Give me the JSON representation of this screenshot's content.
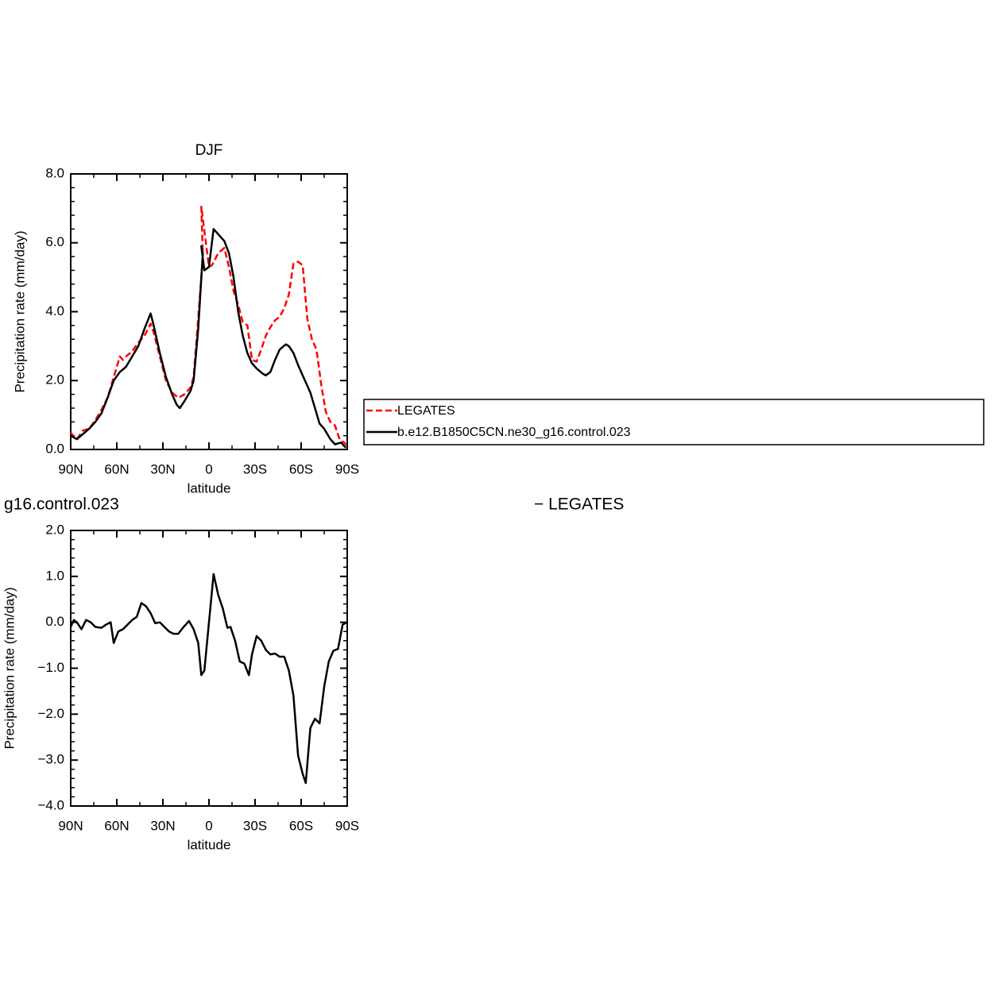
{
  "chart_data": [
    {
      "type": "line",
      "title": "DJF",
      "xlabel": "latitude",
      "ylabel": "Precipitation rate (mm/day)",
      "xlim": [
        90,
        -90
      ],
      "ylim": [
        0,
        8
      ],
      "xticks": [
        {
          "value": 90,
          "label": "90N"
        },
        {
          "value": 60,
          "label": "60N"
        },
        {
          "value": 30,
          "label": "30N"
        },
        0,
        {
          "value": -30,
          "label": "30S"
        },
        {
          "value": -60,
          "label": "60S"
        },
        {
          "value": -90,
          "label": "90S"
        }
      ],
      "yticks": [
        {
          "value": 0,
          "label": "0.0"
        },
        {
          "value": 2,
          "label": "2.0"
        },
        {
          "value": 4,
          "label": "4.0"
        },
        {
          "value": 6,
          "label": "6.0"
        },
        {
          "value": 8,
          "label": "8.0"
        }
      ],
      "xminor": [
        75,
        45,
        15,
        -15,
        -45,
        -75
      ],
      "yminor": [
        0.4,
        0.8,
        1.2,
        1.6,
        2.4,
        2.8,
        3.2,
        3.6,
        4.4,
        4.8,
        5.2,
        5.6,
        6.4,
        6.8,
        7.2,
        7.6
      ],
      "legend": "right",
      "series": [
        {
          "name": "LEGATES",
          "color": "#ff0000",
          "dash": true,
          "x": [
            90,
            88,
            86,
            82,
            78,
            74,
            70,
            66,
            62,
            58,
            56,
            54,
            50,
            46,
            42,
            38,
            36,
            32,
            28,
            24,
            20,
            16,
            12,
            10,
            7,
            4,
            5,
            2,
            0,
            -2,
            -6,
            -10,
            -13,
            -16,
            -19,
            -22,
            -25,
            -28,
            -31,
            -34,
            -37,
            -40,
            -43,
            -46,
            -49,
            -52,
            -55,
            -58,
            -61,
            -64,
            -67,
            -70,
            -73,
            -76,
            -79,
            -82,
            -85,
            -88,
            -90
          ],
          "values": [
            0.5,
            0.35,
            0.3,
            0.55,
            0.6,
            0.85,
            1.15,
            1.5,
            2.1,
            2.7,
            2.6,
            2.7,
            2.85,
            3.1,
            3.3,
            3.65,
            3.4,
            2.7,
            2.0,
            1.65,
            1.5,
            1.6,
            1.8,
            2.1,
            3.8,
            5.6,
            7.05,
            6.0,
            5.3,
            5.35,
            5.7,
            5.85,
            5.3,
            4.6,
            4.2,
            3.7,
            3.6,
            2.6,
            2.55,
            2.9,
            3.3,
            3.55,
            3.75,
            3.85,
            4.1,
            4.5,
            5.4,
            5.45,
            5.35,
            3.8,
            3.2,
            2.9,
            1.9,
            1.1,
            0.8,
            0.7,
            0.3,
            0.2,
            0.1
          ]
        },
        {
          "name": "b.e12.B1850C5CN.ne30_g16.control.023",
          "color": "#000000",
          "dash": false,
          "x": [
            90,
            86,
            82,
            78,
            74,
            70,
            66,
            62,
            58,
            54,
            50,
            46,
            42,
            38,
            36,
            32,
            28,
            24,
            21,
            19,
            16,
            12,
            10,
            7,
            4,
            5,
            3,
            0,
            -3,
            -7,
            -10,
            -13,
            -16,
            -19,
            -22,
            -25,
            -28,
            -31,
            -35,
            -37,
            -40,
            -43,
            -46,
            -50,
            -52,
            -55,
            -58,
            -62,
            -66,
            -69,
            -72,
            -75,
            -79,
            -82,
            -86,
            -89
          ],
          "values": [
            0.4,
            0.3,
            0.45,
            0.6,
            0.8,
            1.05,
            1.5,
            2.0,
            2.25,
            2.4,
            2.7,
            3.0,
            3.5,
            3.95,
            3.6,
            2.8,
            2.1,
            1.6,
            1.3,
            1.2,
            1.4,
            1.7,
            2.0,
            3.5,
            5.7,
            5.9,
            5.2,
            5.3,
            6.4,
            6.2,
            6.05,
            5.7,
            5.0,
            4.0,
            3.3,
            2.8,
            2.5,
            2.35,
            2.2,
            2.15,
            2.25,
            2.6,
            2.9,
            3.05,
            3.0,
            2.8,
            2.45,
            2.05,
            1.65,
            1.2,
            0.75,
            0.6,
            0.3,
            0.15,
            0.2,
            0.05
          ]
        }
      ]
    },
    {
      "type": "line",
      "title_parts": [
        "g16.control.023",
        "− LEGATES"
      ],
      "xlabel": "latitude",
      "ylabel": "Precipitation rate (mm/day)",
      "xlim": [
        90,
        -90
      ],
      "ylim": [
        -4,
        2
      ],
      "xticks": [
        {
          "value": 90,
          "label": "90N"
        },
        {
          "value": 60,
          "label": "60N"
        },
        {
          "value": 30,
          "label": "30N"
        },
        0,
        {
          "value": -30,
          "label": "30S"
        },
        {
          "value": -60,
          "label": "60S"
        },
        {
          "value": -90,
          "label": "90S"
        }
      ],
      "yticks": [
        {
          "value": -4,
          "label": "−4.0"
        },
        {
          "value": -3,
          "label": "−3.0"
        },
        {
          "value": -2,
          "label": "−2.0"
        },
        {
          "value": -1,
          "label": "−1.0"
        },
        {
          "value": 0,
          "label": "0.0"
        },
        {
          "value": 1,
          "label": "1.0"
        },
        {
          "value": 2,
          "label": "2.0"
        }
      ],
      "xminor": [
        75,
        45,
        15,
        -15,
        -45,
        -75
      ],
      "yminor": [
        -3.8,
        -3.6,
        -3.4,
        -3.2,
        -2.8,
        -2.6,
        -2.4,
        -2.2,
        -1.8,
        -1.6,
        -1.4,
        -1.2,
        -0.8,
        -0.6,
        -0.4,
        -0.2,
        0.2,
        0.4,
        0.6,
        0.8,
        1.2,
        1.4,
        1.6,
        1.8
      ],
      "series": [
        {
          "color": "#000000",
          "dash": false,
          "x": [
            90,
            88,
            86,
            83,
            80,
            77,
            74,
            70,
            67,
            64,
            62,
            59,
            56,
            53,
            50,
            47,
            44,
            41,
            38,
            35,
            32,
            29,
            26,
            23,
            20,
            17,
            13,
            10,
            7,
            5,
            3,
            0,
            -3,
            -6,
            -9,
            -12,
            -14,
            -17,
            -20,
            -23,
            -26,
            -28,
            -31,
            -34,
            -37,
            -40,
            -43,
            -46,
            -49,
            -52,
            -55,
            -58,
            -61,
            -63,
            -66,
            -69,
            -72,
            -75,
            -78,
            -81,
            -84,
            -87,
            -90
          ],
          "values": [
            -0.1,
            0.05,
            0.0,
            -0.15,
            0.05,
            0.0,
            -0.1,
            -0.12,
            -0.05,
            0.0,
            -0.45,
            -0.2,
            -0.15,
            -0.05,
            0.05,
            0.12,
            0.42,
            0.35,
            0.2,
            -0.02,
            0.0,
            -0.1,
            -0.2,
            -0.25,
            -0.25,
            -0.12,
            0.03,
            -0.15,
            -0.45,
            -1.15,
            -1.05,
            0.0,
            1.05,
            0.6,
            0.3,
            -0.12,
            -0.1,
            -0.4,
            -0.85,
            -0.9,
            -1.15,
            -0.7,
            -0.3,
            -0.4,
            -0.6,
            -0.7,
            -0.68,
            -0.75,
            -0.75,
            -1.05,
            -1.6,
            -2.9,
            -3.3,
            -3.5,
            -2.3,
            -2.1,
            -2.2,
            -1.4,
            -0.85,
            -0.62,
            -0.58,
            -0.05,
            0.0
          ]
        }
      ]
    }
  ]
}
